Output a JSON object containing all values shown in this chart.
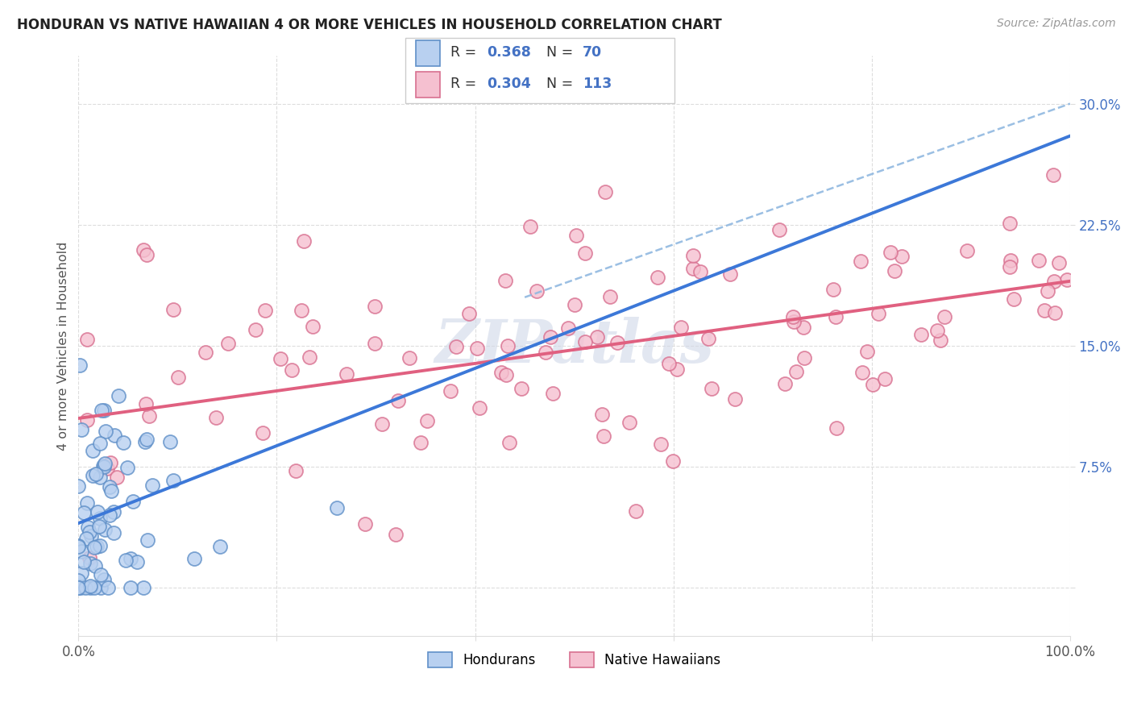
{
  "title": "HONDURAN VS NATIVE HAWAIIAN 4 OR MORE VEHICLES IN HOUSEHOLD CORRELATION CHART",
  "source": "Source: ZipAtlas.com",
  "ylabel": "4 or more Vehicles in Household",
  "xlim": [
    0,
    100
  ],
  "ylim": [
    -3,
    33
  ],
  "ytick_vals": [
    0,
    7.5,
    15.0,
    22.5,
    30.0
  ],
  "ytick_labels": [
    "",
    "7.5%",
    "15.0%",
    "22.5%",
    "30.0%"
  ],
  "xtick_vals": [
    0,
    20,
    40,
    60,
    80,
    100
  ],
  "xtick_labels": [
    "0.0%",
    "",
    "",
    "",
    "",
    "100.0%"
  ],
  "honduran_R": 0.368,
  "honduran_N": 70,
  "hawaiian_R": 0.304,
  "hawaiian_N": 113,
  "blue_face": "#b8d0f0",
  "blue_edge": "#6090c8",
  "pink_face": "#f5c0d0",
  "pink_edge": "#d87090",
  "blue_line": "#3c78d8",
  "pink_line": "#e06080",
  "ci_line": "#90b8e0",
  "watermark_color": "#d0d8e8",
  "legend_label_1": "Hondurans",
  "legend_label_2": "Native Hawaiians",
  "title_color": "#222222",
  "source_color": "#999999",
  "tick_color_y": "#4472c4",
  "tick_color_x": "#555555",
  "grid_color": "#dddddd",
  "hon_line_x0": 0,
  "hon_line_y0": 4.0,
  "hon_line_x1": 100,
  "hon_line_y1": 28.0,
  "haw_line_x0": 0,
  "haw_line_y0": 10.5,
  "haw_line_x1": 100,
  "haw_line_y1": 19.0,
  "ci_x0": 45,
  "ci_y0": 18.0,
  "ci_x1": 100,
  "ci_y1": 30.0
}
